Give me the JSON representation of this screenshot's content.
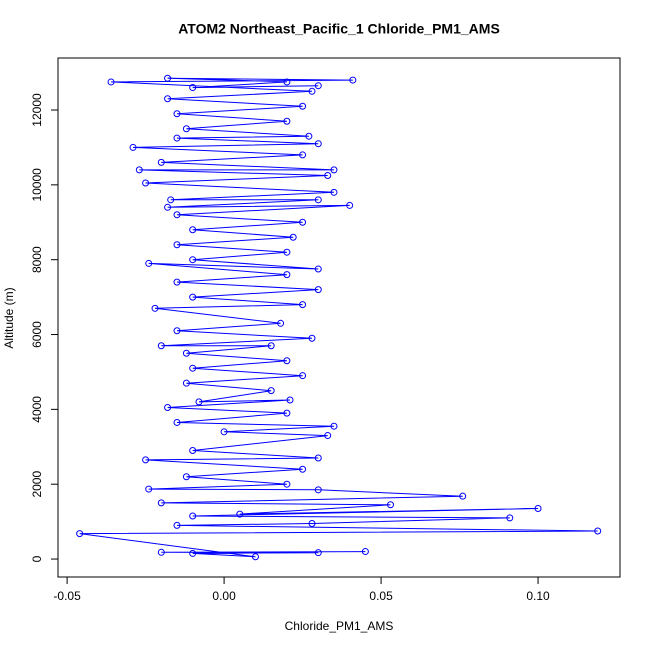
{
  "chart_data": {
    "type": "scatter-line",
    "title": "ATOM2 Northeast_Pacific_1 Chloride_PM1_AMS",
    "x_label": "Chloride_PM1_AMS",
    "y_label": "Altitude (m)",
    "color": "#0000ff",
    "xlim": [
      -0.0529,
      0.1261
    ],
    "ylim": [
      -480,
      13390
    ],
    "xticks": [
      -0.05,
      {
        "value": 0,
        "label": "0.00"
      },
      0.05,
      {
        "value": 0.1,
        "label": "0.10"
      }
    ],
    "yticks": [
      0,
      2000,
      4000,
      6000,
      8000,
      10000,
      12000
    ],
    "x": [
      0.045,
      -0.02,
      0.03,
      -0.01,
      0.01,
      -0.046,
      0.119,
      -0.015,
      0.028,
      0.091,
      -0.01,
      0.1,
      0.005,
      0.053,
      -0.02,
      0.076,
      0.03,
      -0.024,
      0.02,
      -0.012,
      0.025,
      -0.025,
      0.03,
      -0.01,
      0.033,
      0.0,
      0.035,
      -0.015,
      0.02,
      -0.018,
      0.021,
      -0.008,
      0.015,
      -0.012,
      0.025,
      -0.01,
      0.02,
      -0.012,
      0.015,
      -0.02,
      0.028,
      -0.015,
      0.018,
      -0.022,
      0.025,
      -0.01,
      0.03,
      -0.015,
      0.02,
      -0.024,
      0.03,
      -0.01,
      0.02,
      -0.015,
      0.022,
      -0.01,
      0.025,
      -0.015,
      0.04,
      -0.018,
      0.03,
      -0.017,
      0.035,
      -0.025,
      0.033,
      -0.027,
      0.035,
      -0.02,
      0.025,
      -0.029,
      0.03,
      -0.015,
      0.027,
      -0.012,
      0.02,
      -0.015,
      0.025,
      -0.018,
      0.028,
      -0.036,
      0.041,
      -0.018,
      0.02,
      -0.01,
      0.03
    ],
    "y": [
      200,
      180,
      170,
      150,
      60,
      680,
      750,
      900,
      950,
      1100,
      1150,
      1350,
      1200,
      1450,
      1500,
      1680,
      1850,
      1870,
      2000,
      2200,
      2400,
      2650,
      2700,
      2900,
      3300,
      3400,
      3550,
      3650,
      3900,
      4050,
      4250,
      4200,
      4500,
      4700,
      4900,
      5100,
      5300,
      5500,
      5700,
      5700,
      5900,
      6100,
      6300,
      6700,
      6800,
      7000,
      7200,
      7400,
      7600,
      7900,
      7750,
      8000,
      8200,
      8400,
      8600,
      8800,
      9000,
      9200,
      9450,
      9400,
      9600,
      9600,
      9800,
      10050,
      10250,
      10400,
      10400,
      10600,
      10800,
      11000,
      11100,
      11250,
      11300,
      11500,
      11700,
      11900,
      12100,
      12300,
      12500,
      12750,
      12800,
      12850,
      12750,
      12600,
      12650
    ]
  }
}
